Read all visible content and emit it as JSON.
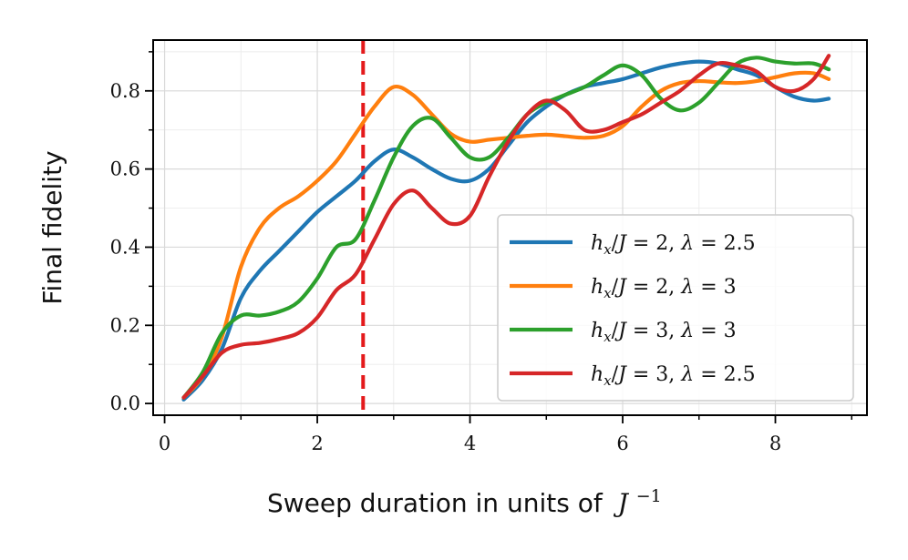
{
  "chart_data": {
    "type": "line",
    "xlabel": "Sweep duration in units of",
    "xlabel_math": "J",
    "xlabel_sup": "−1",
    "ylabel": "Final fidelity",
    "xlim": [
      -0.15,
      9.2
    ],
    "ylim": [
      -0.03,
      0.93
    ],
    "xticks": [
      0,
      2,
      4,
      6,
      8
    ],
    "xtick_labels": [
      "0",
      "2",
      "4",
      "6",
      "8"
    ],
    "yticks": [
      0.0,
      0.2,
      0.4,
      0.6,
      0.8
    ],
    "ytick_labels": [
      "0.0",
      "0.2",
      "0.4",
      "0.6",
      "0.8"
    ],
    "grid": true,
    "legend_position": "lower-right",
    "vline": {
      "x": 2.6,
      "color": "#e41a1c",
      "style": "dashed"
    },
    "series": [
      {
        "name": "h_x/J = 2, λ = 2.5",
        "label_hx": "2",
        "label_lambda": "2.5",
        "color": "#1f77b4",
        "x": [
          0.25,
          0.5,
          0.75,
          1.0,
          1.25,
          1.5,
          1.75,
          2.0,
          2.25,
          2.5,
          2.75,
          3.0,
          3.25,
          3.5,
          3.75,
          4.0,
          4.25,
          4.5,
          4.75,
          5.0,
          5.25,
          5.5,
          5.75,
          6.0,
          6.25,
          6.5,
          6.75,
          7.0,
          7.25,
          7.5,
          7.75,
          8.0,
          8.25,
          8.5,
          8.7
        ],
        "values": [
          0.01,
          0.06,
          0.14,
          0.27,
          0.34,
          0.39,
          0.44,
          0.49,
          0.53,
          0.57,
          0.62,
          0.65,
          0.63,
          0.6,
          0.575,
          0.57,
          0.6,
          0.66,
          0.72,
          0.76,
          0.79,
          0.81,
          0.82,
          0.83,
          0.845,
          0.86,
          0.87,
          0.875,
          0.87,
          0.855,
          0.84,
          0.81,
          0.785,
          0.775,
          0.78
        ]
      },
      {
        "name": "h_x/J = 2, λ = 3",
        "label_hx": "2",
        "label_lambda": "3",
        "color": "#ff7f0e",
        "x": [
          0.25,
          0.5,
          0.75,
          1.0,
          1.25,
          1.5,
          1.75,
          2.0,
          2.25,
          2.5,
          2.75,
          3.0,
          3.25,
          3.5,
          3.75,
          4.0,
          4.25,
          4.5,
          4.75,
          5.0,
          5.25,
          5.5,
          5.75,
          6.0,
          6.25,
          6.5,
          6.75,
          7.0,
          7.25,
          7.5,
          7.75,
          8.0,
          8.25,
          8.5,
          8.7
        ],
        "values": [
          0.015,
          0.07,
          0.17,
          0.35,
          0.45,
          0.5,
          0.53,
          0.57,
          0.62,
          0.69,
          0.76,
          0.81,
          0.79,
          0.74,
          0.69,
          0.67,
          0.675,
          0.68,
          0.685,
          0.688,
          0.684,
          0.68,
          0.685,
          0.71,
          0.76,
          0.8,
          0.82,
          0.825,
          0.822,
          0.82,
          0.825,
          0.835,
          0.845,
          0.845,
          0.83
        ]
      },
      {
        "name": "h_x/J = 3, λ = 3",
        "label_hx": "3",
        "label_lambda": "3",
        "color": "#2ca02c",
        "x": [
          0.25,
          0.5,
          0.75,
          1.0,
          1.25,
          1.5,
          1.75,
          2.0,
          2.25,
          2.5,
          2.75,
          3.0,
          3.25,
          3.5,
          3.75,
          4.0,
          4.25,
          4.5,
          4.75,
          5.0,
          5.25,
          5.5,
          5.75,
          6.0,
          6.25,
          6.5,
          6.75,
          7.0,
          7.25,
          7.5,
          7.75,
          8.0,
          8.25,
          8.5,
          8.7
        ],
        "values": [
          0.015,
          0.08,
          0.18,
          0.225,
          0.225,
          0.235,
          0.26,
          0.32,
          0.4,
          0.42,
          0.52,
          0.63,
          0.71,
          0.73,
          0.68,
          0.63,
          0.63,
          0.68,
          0.74,
          0.77,
          0.79,
          0.81,
          0.84,
          0.865,
          0.84,
          0.78,
          0.75,
          0.77,
          0.82,
          0.87,
          0.885,
          0.875,
          0.87,
          0.87,
          0.855
        ]
      },
      {
        "name": "h_x/J = 3, λ = 2.5",
        "label_hx": "3",
        "label_lambda": "2.5",
        "color": "#d62728",
        "x": [
          0.25,
          0.5,
          0.75,
          1.0,
          1.25,
          1.5,
          1.75,
          2.0,
          2.25,
          2.5,
          2.75,
          3.0,
          3.25,
          3.5,
          3.75,
          4.0,
          4.25,
          4.5,
          4.75,
          5.0,
          5.25,
          5.5,
          5.75,
          6.0,
          6.25,
          6.5,
          6.75,
          7.0,
          7.25,
          7.5,
          7.75,
          8.0,
          8.25,
          8.5,
          8.7
        ],
        "values": [
          0.015,
          0.07,
          0.13,
          0.15,
          0.155,
          0.165,
          0.18,
          0.22,
          0.29,
          0.33,
          0.42,
          0.51,
          0.545,
          0.5,
          0.46,
          0.48,
          0.58,
          0.67,
          0.74,
          0.775,
          0.75,
          0.7,
          0.7,
          0.72,
          0.74,
          0.77,
          0.8,
          0.84,
          0.87,
          0.865,
          0.85,
          0.81,
          0.8,
          0.83,
          0.89
        ]
      }
    ]
  }
}
